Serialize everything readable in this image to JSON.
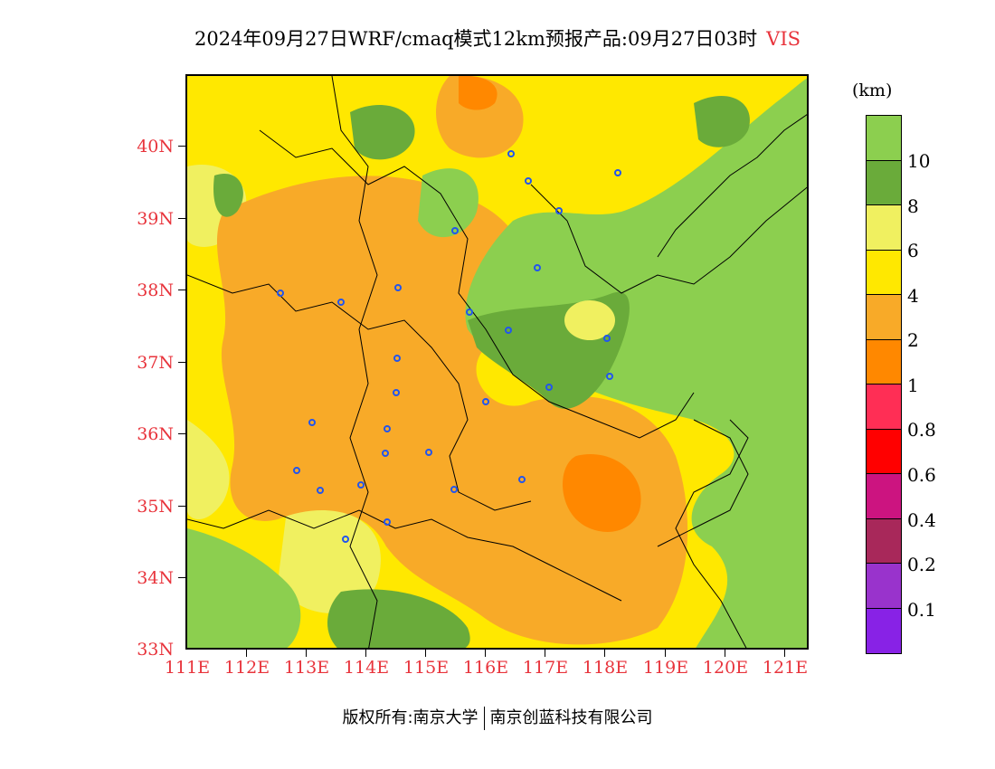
{
  "title": {
    "main": "2024年09月27日WRF/cmaq模式12km预报产品:09月27日03时",
    "variable": "VIS"
  },
  "axes": {
    "lat_labels": [
      "40N",
      "39N",
      "38N",
      "37N",
      "36N",
      "35N",
      "34N",
      "33N"
    ],
    "lon_labels": [
      "111E",
      "112E",
      "113E",
      "114E",
      "115E",
      "116E",
      "117E",
      "118E",
      "119E",
      "120E",
      "121E"
    ]
  },
  "colorbar": {
    "unit": "(km)",
    "labels": [
      "10",
      "8",
      "6",
      "4",
      "2",
      "1",
      "0.8",
      "0.6",
      "0.4",
      "0.2",
      "0.1"
    ],
    "colors": [
      "#8ccf4f",
      "#6aab3a",
      "#f0f060",
      "#ffe800",
      "#f8aa28",
      "#ff8800",
      "#ff2e55",
      "#ff0000",
      "#cc1480",
      "#a8285a",
      "#9933cc",
      "#8822e6"
    ]
  },
  "footer": {
    "left": "版权所有:南京大学",
    "right": "南京创蓝科技有限公司"
  },
  "chart_data": {
    "type": "heatmap",
    "title": "2024年09月27日WRF/cmaq模式12km预报产品:09月27日03时 VIS",
    "xlim": [
      111,
      121.4
    ],
    "ylim": [
      33,
      41
    ],
    "unit": "km",
    "levels": [
      0.1,
      0.2,
      0.4,
      0.6,
      0.8,
      1,
      2,
      4,
      6,
      8,
      10
    ]
  }
}
